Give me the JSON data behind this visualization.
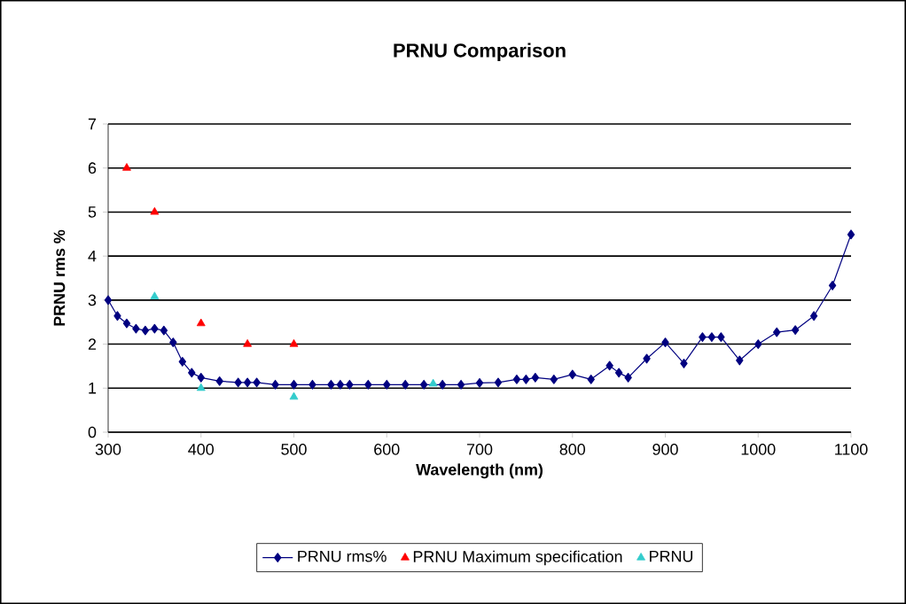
{
  "chart_data": {
    "type": "line",
    "title": "PRNU Comparison",
    "xlabel": "Wavelength (nm)",
    "ylabel": "PRNU rms %",
    "xlim": [
      300,
      1100
    ],
    "xticks": [
      300,
      400,
      500,
      600,
      700,
      800,
      900,
      1000,
      1100
    ],
    "ylim": [
      0,
      7
    ],
    "yticks": [
      0,
      1,
      2,
      3,
      4,
      5,
      6,
      7
    ],
    "grid": "y",
    "legend": "bottom",
    "series": [
      {
        "name": "PRNU rms%",
        "color": "#000080",
        "marker": "diamond",
        "x": [
          300,
          310,
          320,
          330,
          340,
          350,
          360,
          370,
          380,
          390,
          400,
          420,
          440,
          450,
          460,
          480,
          500,
          520,
          540,
          550,
          560,
          580,
          600,
          620,
          640,
          660,
          680,
          700,
          720,
          740,
          750,
          760,
          780,
          800,
          820,
          840,
          850,
          860,
          880,
          900,
          920,
          940,
          950,
          960,
          980,
          1000,
          1020,
          1040,
          1060,
          1080,
          1100
        ],
        "values": [
          3.0,
          2.64,
          2.47,
          2.35,
          2.31,
          2.35,
          2.31,
          2.04,
          1.6,
          1.35,
          1.24,
          1.16,
          1.13,
          1.13,
          1.13,
          1.08,
          1.08,
          1.08,
          1.08,
          1.08,
          1.08,
          1.08,
          1.08,
          1.08,
          1.08,
          1.08,
          1.08,
          1.12,
          1.13,
          1.2,
          1.2,
          1.24,
          1.2,
          1.31,
          1.2,
          1.51,
          1.35,
          1.24,
          1.67,
          2.04,
          1.56,
          2.16,
          2.16,
          2.16,
          1.63,
          2.0,
          2.27,
          2.32,
          2.64,
          3.33,
          4.49
        ]
      },
      {
        "name": "PRNU Maximum specification",
        "color": "#ff0000",
        "type": "scatter",
        "marker": "triangle",
        "x": [
          320,
          350,
          400,
          450,
          500
        ],
        "values": [
          6.0,
          5.0,
          2.47,
          2.0,
          2.0
        ]
      },
      {
        "name": "PRNU",
        "color": "#33cccc",
        "type": "scatter",
        "marker": "triangle",
        "x": [
          350,
          400,
          500,
          650
        ],
        "values": [
          3.08,
          1.0,
          0.8,
          1.1
        ]
      }
    ]
  }
}
